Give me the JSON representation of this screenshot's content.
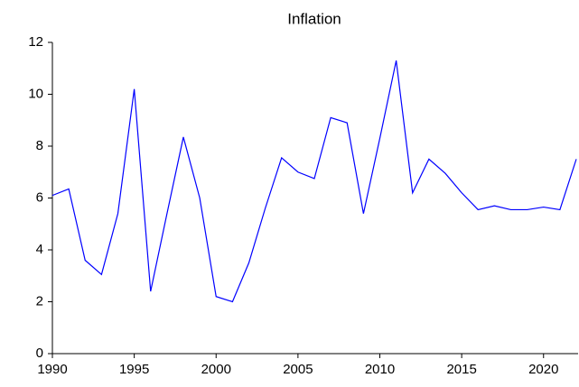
{
  "chart_data": {
    "type": "line",
    "title": "Inflation",
    "x": [
      1990,
      1991,
      1992,
      1993,
      1994,
      1995,
      1996,
      1997,
      1998,
      1999,
      2000,
      2001,
      2002,
      2003,
      2004,
      2005,
      2006,
      2007,
      2008,
      2009,
      2010,
      2011,
      2012,
      2013,
      2014,
      2015,
      2016,
      2017,
      2018,
      2019,
      2020,
      2021,
      2022
    ],
    "series": [
      {
        "color": "#0000ff",
        "values": [
          6.1,
          6.35,
          3.6,
          3.05,
          5.4,
          10.2,
          2.4,
          5.4,
          8.35,
          6.0,
          2.2,
          2.0,
          3.5,
          5.6,
          7.55,
          7.0,
          6.75,
          9.1,
          8.9,
          5.4,
          8.3,
          11.3,
          6.2,
          7.5,
          6.95,
          6.2,
          5.55,
          5.7,
          5.55,
          5.55,
          5.65,
          5.55,
          7.5
        ]
      }
    ],
    "xlim": [
      1990,
      2022
    ],
    "xticks": [
      1990,
      1995,
      2000,
      2005,
      2010,
      2015,
      2020
    ],
    "ylim": [
      0,
      12
    ],
    "yticks": [
      0,
      2,
      4,
      6,
      8,
      10,
      12
    ],
    "grid": false
  }
}
